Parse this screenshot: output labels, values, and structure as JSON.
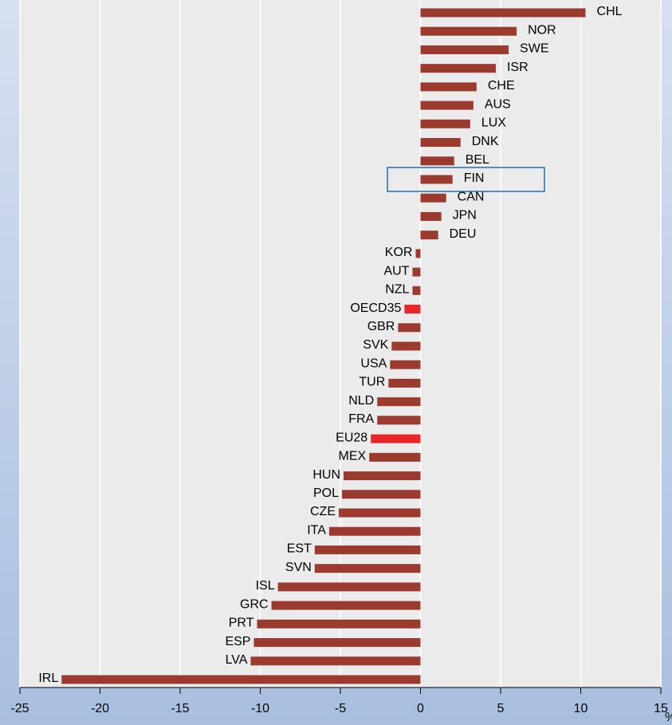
{
  "chart_data": {
    "type": "hbar",
    "categories": [
      "CHL",
      "NOR",
      "SWE",
      "ISR",
      "CHE",
      "AUS",
      "LUX",
      "DNK",
      "BEL",
      "FIN",
      "CAN",
      "JPN",
      "DEU",
      "KOR",
      "AUT",
      "NZL",
      "OECD35",
      "GBR",
      "SVK",
      "USA",
      "TUR",
      "NLD",
      "FRA",
      "EU28",
      "MEX",
      "HUN",
      "POL",
      "CZE",
      "ITA",
      "EST",
      "SVN",
      "ISL",
      "GRC",
      "PRT",
      "ESP",
      "LVA",
      "IRL"
    ],
    "values": [
      10.3,
      6.0,
      5.5,
      4.7,
      3.5,
      3.3,
      3.1,
      2.5,
      2.1,
      2.0,
      1.6,
      1.3,
      1.1,
      -0.3,
      -0.5,
      -0.5,
      -1.0,
      -1.4,
      -1.8,
      -1.9,
      -2.0,
      -2.7,
      -2.7,
      -3.1,
      -3.2,
      -4.8,
      -4.9,
      -5.1,
      -5.7,
      -6.6,
      -6.6,
      -8.9,
      -9.3,
      -10.2,
      -10.4,
      -10.6,
      -22.4
    ],
    "color": "#9b3a2e",
    "highlight_color": "#e8262a",
    "highlighted": [
      "OECD35",
      "EU28"
    ],
    "boxed": "FIN",
    "box_color": "#1f6fb5",
    "xlim": [
      -25,
      15
    ],
    "xticks": [
      -25,
      -20,
      -15,
      -10,
      -5,
      0,
      5,
      10,
      15
    ],
    "xlabel": "%",
    "grid": true
  }
}
